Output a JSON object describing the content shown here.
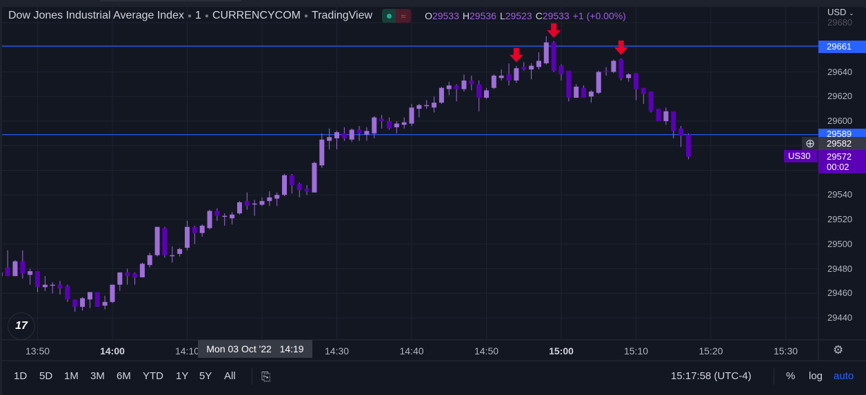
{
  "header": {
    "symbol_name": "Dow Jones Industrial Average Index",
    "interval": "1",
    "exchange": "CURRENCYCOM",
    "source": "TradingView",
    "ohlc": {
      "o_label": "O",
      "o": "29533",
      "h_label": "H",
      "h": "29536",
      "l_label": "L",
      "l": "29523",
      "c_label": "C",
      "c": "29533",
      "change": "+1 (+0.00%)"
    },
    "status_icons": [
      "market-open-dot-icon",
      "delayed-data-icon"
    ]
  },
  "price_axis": {
    "currency": "USD",
    "ticks": [
      "29680",
      "29640",
      "29620",
      "29600",
      "29540",
      "29520",
      "29500",
      "29480",
      "29460",
      "29440"
    ],
    "line_label_upper": "29661",
    "line_label_lower": "29589",
    "crosshair_price": "29582",
    "last_price": "29572",
    "countdown": "00:02",
    "symbol_tag": "US30"
  },
  "time_axis": {
    "ticks": [
      {
        "t": "13:50",
        "bold": false
      },
      {
        "t": "14:00",
        "bold": true
      },
      {
        "t": "14:10",
        "bold": false
      },
      {
        "t": "14:30",
        "bold": false
      },
      {
        "t": "14:40",
        "bold": false
      },
      {
        "t": "14:50",
        "bold": false
      },
      {
        "t": "15:00",
        "bold": true
      },
      {
        "t": "15:10",
        "bold": false
      },
      {
        "t": "15:20",
        "bold": false
      },
      {
        "t": "15:30",
        "bold": false
      }
    ],
    "crosshair_label": "Mon 03 Oct '22",
    "crosshair_time": "14:19"
  },
  "bottom_toolbar": {
    "ranges": [
      "1D",
      "5D",
      "1M",
      "3M",
      "6M",
      "YTD",
      "1Y",
      "5Y",
      "All"
    ],
    "clock": "15:17:58 (UTC-4)",
    "percent": "%",
    "log": "log",
    "auto": "auto"
  },
  "colors": {
    "background": "#131722",
    "up": "#a06ed8",
    "down": "#5b00b5",
    "hline": "#2962ff",
    "arrow": "#e8002a",
    "auto": "#2962ff"
  },
  "chart_data": {
    "type": "candlestick",
    "ylim": [
      29430,
      29685
    ],
    "horizontal_lines": [
      29661,
      29589
    ],
    "sell_arrows_at": [
      "14:54",
      "14:59",
      "15:08"
    ],
    "candles": [
      [
        "13:45",
        29474,
        29480,
        29467,
        29477
      ],
      [
        "13:46",
        29481,
        29495,
        29474,
        29474
      ],
      [
        "13:47",
        29474,
        29487,
        29474,
        29486
      ],
      [
        "13:48",
        29486,
        29495,
        29472,
        29476
      ],
      [
        "13:49",
        29475,
        29480,
        29467,
        29478
      ],
      [
        "13:50",
        29478,
        29478,
        29461,
        29465
      ],
      [
        "13:51",
        29465,
        29474,
        29462,
        29467
      ],
      [
        "13:52",
        29467,
        29469,
        29460,
        29467
      ],
      [
        "13:53",
        29467,
        29470,
        29459,
        29464
      ],
      [
        "13:54",
        29466,
        29467,
        29453,
        29455
      ],
      [
        "13:55",
        29455,
        29455,
        29445,
        29449
      ],
      [
        "13:56",
        29449,
        29457,
        29446,
        29456
      ],
      [
        "13:57",
        29455,
        29461,
        29448,
        29461
      ],
      [
        "13:58",
        29461,
        29461,
        29449,
        29449
      ],
      [
        "13:59",
        29450,
        29458,
        29447,
        29453
      ],
      [
        "14:00",
        29453,
        29467,
        29452,
        29467
      ],
      [
        "14:01",
        29467,
        29477,
        29462,
        29477
      ],
      [
        "14:02",
        29477,
        29480,
        29467,
        29474
      ],
      [
        "14:03",
        29476,
        29477,
        29467,
        29473
      ],
      [
        "14:04",
        29473,
        29485,
        29473,
        29484
      ],
      [
        "14:05",
        29483,
        29493,
        29481,
        29491
      ],
      [
        "14:06",
        29491,
        29514,
        29490,
        29514
      ],
      [
        "14:07",
        29513,
        29514,
        29489,
        29491
      ],
      [
        "14:08",
        29491,
        29498,
        29485,
        29491
      ],
      [
        "14:09",
        29492,
        29497,
        29490,
        29496
      ],
      [
        "14:10",
        29497,
        29519,
        29495,
        29514
      ],
      [
        "14:11",
        29514,
        29515,
        29500,
        29509
      ],
      [
        "14:12",
        29509,
        29516,
        29506,
        29515
      ],
      [
        "14:13",
        29513,
        29528,
        29512,
        29527
      ],
      [
        "14:14",
        29527,
        29529,
        29519,
        29523
      ],
      [
        "14:15",
        29523,
        29525,
        29515,
        29523
      ],
      [
        "14:16",
        29521,
        29526,
        29516,
        29524
      ],
      [
        "14:17",
        29525,
        29535,
        29524,
        29534
      ],
      [
        "14:18",
        29535,
        29542,
        29528,
        29531
      ],
      [
        "14:19",
        29533,
        29536,
        29523,
        29533
      ],
      [
        "14:20",
        29532,
        29538,
        29531,
        29535
      ],
      [
        "14:21",
        29535,
        29543,
        29531,
        29538
      ],
      [
        "14:22",
        29537,
        29542,
        29531,
        29540
      ],
      [
        "14:23",
        29540,
        29557,
        29539,
        29556
      ],
      [
        "14:24",
        29556,
        29557,
        29541,
        29548
      ],
      [
        "14:25",
        29549,
        29550,
        29538,
        29544
      ],
      [
        "14:26",
        29545,
        29548,
        29540,
        29543
      ],
      [
        "14:27",
        29542,
        29567,
        29542,
        29566
      ],
      [
        "14:28",
        29564,
        29590,
        29562,
        29585
      ],
      [
        "14:29",
        29584,
        29594,
        29577,
        29587
      ],
      [
        "14:30",
        29586,
        29592,
        29577,
        29591
      ],
      [
        "14:31",
        29590,
        29595,
        29584,
        29586
      ],
      [
        "14:32",
        29585,
        29594,
        29583,
        29593
      ],
      [
        "14:33",
        29593,
        29596,
        29584,
        29590
      ],
      [
        "14:34",
        29589,
        29595,
        29584,
        29592
      ],
      [
        "14:35",
        29590,
        29604,
        29586,
        29603
      ],
      [
        "14:36",
        29602,
        29605,
        29594,
        29600
      ],
      [
        "14:37",
        29600,
        29603,
        29593,
        29594
      ],
      [
        "14:38",
        29595,
        29600,
        29590,
        29598
      ],
      [
        "14:39",
        29597,
        29603,
        29594,
        29599
      ],
      [
        "14:40",
        29598,
        29614,
        29596,
        29611
      ],
      [
        "14:41",
        29610,
        29614,
        29603,
        29613
      ],
      [
        "14:42",
        29613,
        29617,
        29610,
        29613
      ],
      [
        "14:43",
        29611,
        29620,
        29607,
        29615
      ],
      [
        "14:44",
        29615,
        29628,
        29614,
        29627
      ],
      [
        "14:45",
        29626,
        29632,
        29621,
        29629
      ],
      [
        "14:46",
        29629,
        29630,
        29616,
        29626
      ],
      [
        "14:47",
        29626,
        29638,
        29624,
        29633
      ],
      [
        "14:48",
        29633,
        29637,
        29625,
        29630
      ],
      [
        "14:49",
        29630,
        29633,
        29608,
        29619
      ],
      [
        "14:50",
        29619,
        29627,
        29618,
        29625
      ],
      [
        "14:51",
        29627,
        29638,
        29626,
        29637
      ],
      [
        "14:52",
        29635,
        29642,
        29633,
        29637
      ],
      [
        "14:53",
        29638,
        29647,
        29629,
        29633
      ],
      [
        "14:54",
        29633,
        29645,
        29631,
        29643
      ],
      [
        "14:55",
        29644,
        29648,
        29641,
        29642
      ],
      [
        "14:56",
        29642,
        29647,
        29634,
        29645
      ],
      [
        "14:57",
        29644,
        29656,
        29642,
        29649
      ],
      [
        "14:58",
        29647,
        29669,
        29646,
        29664
      ],
      [
        "14:59",
        29664,
        29665,
        29640,
        29641
      ],
      [
        "15:00",
        29645,
        29646,
        29633,
        29638
      ],
      [
        "15:01",
        29641,
        29641,
        29616,
        29619
      ],
      [
        "15:02",
        29619,
        29630,
        29619,
        29628
      ],
      [
        "15:03",
        29627,
        29629,
        29619,
        29619
      ],
      [
        "15:04",
        29620,
        29625,
        29615,
        29624
      ],
      [
        "15:05",
        29623,
        29641,
        29622,
        29640
      ],
      [
        "15:06",
        29641,
        29644,
        29637,
        29640
      ],
      [
        "15:07",
        29640,
        29650,
        29639,
        29649
      ],
      [
        "15:08",
        29650,
        29651,
        29633,
        29635
      ],
      [
        "15:09",
        29635,
        29639,
        29632,
        29638
      ],
      [
        "15:10",
        29639,
        29639,
        29617,
        29626
      ],
      [
        "15:11",
        29627,
        29627,
        29614,
        29622
      ],
      [
        "15:12",
        29624,
        29624,
        29607,
        29608
      ],
      [
        "15:13",
        29610,
        29610,
        29600,
        29600
      ],
      [
        "15:14",
        29600,
        29611,
        29597,
        29608
      ],
      [
        "15:15",
        29608,
        29608,
        29586,
        29592
      ],
      [
        "15:16",
        29594,
        29596,
        29579,
        29588
      ],
      [
        "15:17",
        29589,
        29590,
        29569,
        29571
      ]
    ]
  }
}
